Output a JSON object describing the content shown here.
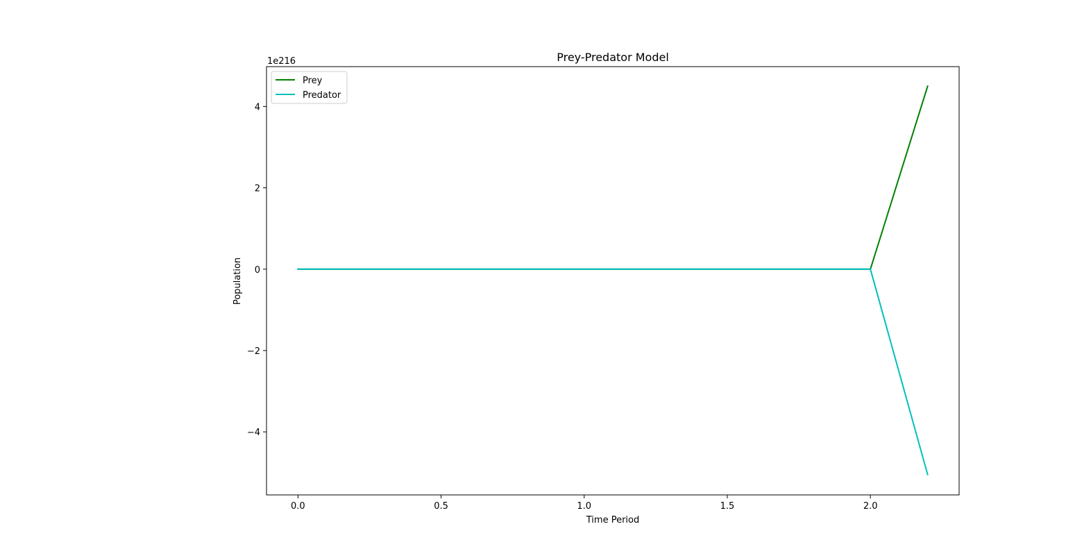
{
  "chart_data": {
    "type": "line",
    "title": "Prey-Predator Model",
    "xlabel": "Time Period",
    "ylabel": "Population",
    "y_offset_label": "1e216",
    "y_scale_factor": 1e+216,
    "xlim": [
      -0.11,
      2.31
    ],
    "ylim": [
      -5.55,
      4.98
    ],
    "x_ticks": [
      0.0,
      0.5,
      1.0,
      1.5,
      2.0
    ],
    "x_tick_labels": [
      "0.0",
      "0.5",
      "1.0",
      "1.5",
      "2.0"
    ],
    "y_ticks": [
      -4,
      -2,
      0,
      2,
      4
    ],
    "y_tick_labels": [
      "−4",
      "−2",
      "0",
      "2",
      "4"
    ],
    "grid": false,
    "legend_position": "upper-left",
    "series": [
      {
        "name": "Prey",
        "color": "#008000",
        "x": [
          0.0,
          2.0,
          2.2
        ],
        "y": [
          0,
          0,
          4.5
        ]
      },
      {
        "name": "Predator",
        "color": "#00bfbf",
        "x": [
          0.0,
          2.0,
          2.2
        ],
        "y": [
          0,
          0,
          -5.05
        ]
      }
    ]
  }
}
